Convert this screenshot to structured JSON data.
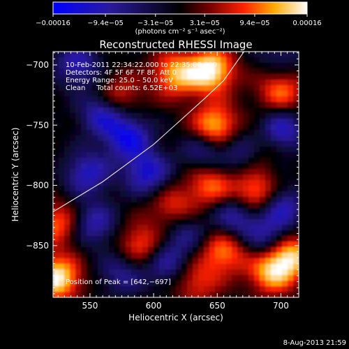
{
  "chart_data": {
    "type": "heatmap",
    "title": "Reconstructed RHESSI Image",
    "xlabel": "Heliocentric X (arcsec)",
    "ylabel": "Heliocentric Y (arcsec)",
    "xlim": [
      521,
      714
    ],
    "ylim": [
      -893,
      -689
    ],
    "x_ticks": [
      550,
      600,
      650,
      700
    ],
    "x_tick_labels": [
      "550",
      "600",
      "650",
      "700"
    ],
    "y_ticks": [
      -700,
      -750,
      -800,
      -850
    ],
    "y_tick_labels": [
      "−700",
      "−750",
      "−800",
      "−850"
    ],
    "colorbar": {
      "min": -0.00016,
      "max": 0.00016,
      "ticks": [
        -0.00016,
        -9.4e-05,
        -3.1e-05,
        3.1e-05,
        9.4e-05,
        0.00016
      ],
      "tick_labels": [
        "−0.00016",
        "−9.4e−05",
        "−3.1e−05",
        "3.1e−05",
        "9.4e−05",
        "0.00016"
      ],
      "unit_label": "(photons cm⁻² s⁻¹ asec⁻²)",
      "colors": [
        "#0000ff",
        "#2a1aa0",
        "#000000",
        "#7a0000",
        "#ff2200",
        "#ffaa00",
        "#ffffff"
      ]
    },
    "annotations": [
      "10-Feb-2011 22:34:22.000 to 22:35:00.000",
      "Detectors: 4F 5F 6F 7F 8F, Att 0",
      "Energy Range: 25.0 – 50.0 keV",
      "Clean     Total counts: 6.52E+03"
    ],
    "peak_label": "Position of Peak = [642,−697]",
    "peak": [
      642,
      -697
    ],
    "limb_curve": [
      [
        521,
        -822
      ],
      [
        560,
        -797
      ],
      [
        600,
        -766
      ],
      [
        640,
        -728
      ],
      [
        655,
        -713
      ],
      [
        671,
        -689
      ]
    ],
    "sources": [
      {
        "x": 645,
        "y": -705,
        "value": 0.00016
      },
      {
        "x": 648,
        "y": -752,
        "value": 0.00015
      },
      {
        "x": 617,
        "y": -708,
        "value": 0.00012
      },
      {
        "x": 524,
        "y": -877,
        "value": 0.00016
      },
      {
        "x": 707,
        "y": -858,
        "value": 0.00014
      },
      {
        "x": 692,
        "y": -872,
        "value": 0.00012
      },
      {
        "x": 680,
        "y": -808,
        "value": 0.00013
      },
      {
        "x": 655,
        "y": -855,
        "value": 0.00011
      },
      {
        "x": 590,
        "y": -850,
        "value": 0.0001
      },
      {
        "x": 525,
        "y": -832,
        "value": 0.0001
      },
      {
        "x": 645,
        "y": -800,
        "value": 0.0001
      },
      {
        "x": 700,
        "y": -722,
        "value": 0.0001
      },
      {
        "x": 572,
        "y": -727,
        "value": 9e-05
      },
      {
        "x": 682,
        "y": -768,
        "value": 9e-05
      },
      {
        "x": 615,
        "y": -818,
        "value": 8e-05
      },
      {
        "x": 633,
        "y": -880,
        "value": 8e-05
      },
      {
        "x": 560,
        "y": -740,
        "value": -0.00012
      },
      {
        "x": 580,
        "y": -760,
        "value": -0.00013
      },
      {
        "x": 595,
        "y": -790,
        "value": -0.00012
      },
      {
        "x": 548,
        "y": -790,
        "value": -0.00011
      },
      {
        "x": 553,
        "y": -832,
        "value": -0.0001
      },
      {
        "x": 540,
        "y": -700,
        "value": -0.0001
      },
      {
        "x": 672,
        "y": -770,
        "value": -0.00011
      },
      {
        "x": 700,
        "y": -755,
        "value": -0.00012
      },
      {
        "x": 700,
        "y": -818,
        "value": -0.00011
      },
      {
        "x": 665,
        "y": -825,
        "value": -0.00011
      },
      {
        "x": 640,
        "y": -770,
        "value": -9e-05
      },
      {
        "x": 610,
        "y": -865,
        "value": -9e-05
      },
      {
        "x": 575,
        "y": -873,
        "value": -8e-05
      },
      {
        "x": 625,
        "y": -840,
        "value": -7e-05
      },
      {
        "x": 700,
        "y": -690,
        "value": -6e-05
      },
      {
        "x": 690,
        "y": -845,
        "value": -9e-05
      }
    ]
  },
  "footer_date": "8-Aug-2013 21:59"
}
